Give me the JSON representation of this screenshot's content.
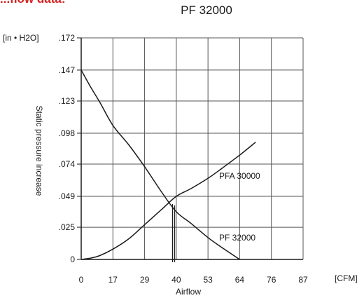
{
  "header_fragment": "...flow data:",
  "colors": {
    "header_accent": "#d62020",
    "lines": "#1a1a1a",
    "grid": "#555555"
  },
  "chart_data": {
    "type": "line",
    "title": "PF 32000",
    "xlabel": "Airflow",
    "xunit": "[CFM]",
    "ylabel": "Static pressure increase",
    "yunit": "[in • H2O]",
    "x_ticks": [
      0,
      17,
      29,
      40,
      53,
      64,
      76,
      87
    ],
    "y_ticks": [
      0,
      0.025,
      0.049,
      0.074,
      0.098,
      0.123,
      0.147,
      0.172
    ],
    "x_tick_labels": [
      "0",
      "17",
      "29",
      "40",
      "53",
      "64",
      "76",
      "87"
    ],
    "y_tick_labels": [
      "0",
      ".025",
      ".049",
      ".074",
      ".098",
      ".123",
      ".147",
      ".172"
    ],
    "xlim": [
      0,
      87
    ],
    "ylim": [
      0,
      0.172
    ],
    "grid": true,
    "series": [
      {
        "name": "PF 32000",
        "x": [
          0,
          5,
          10,
          17,
          23,
          29,
          35,
          40,
          46,
          53,
          58,
          64
        ],
        "y": [
          0.147,
          0.134,
          0.122,
          0.104,
          0.089,
          0.072,
          0.052,
          0.037,
          0.028,
          0.017,
          0.009,
          0
        ]
      },
      {
        "name": "PFA 30000",
        "x": [
          0,
          5,
          10,
          17,
          23,
          29,
          35,
          40,
          46,
          53,
          58,
          64,
          70
        ],
        "y": [
          0,
          0.001,
          0.003,
          0.008,
          0.016,
          0.027,
          0.039,
          0.049,
          0.055,
          0.063,
          0.071,
          0.081,
          0.091
        ]
      }
    ],
    "operating_point": {
      "x": 38.7,
      "y": 0.043
    }
  }
}
